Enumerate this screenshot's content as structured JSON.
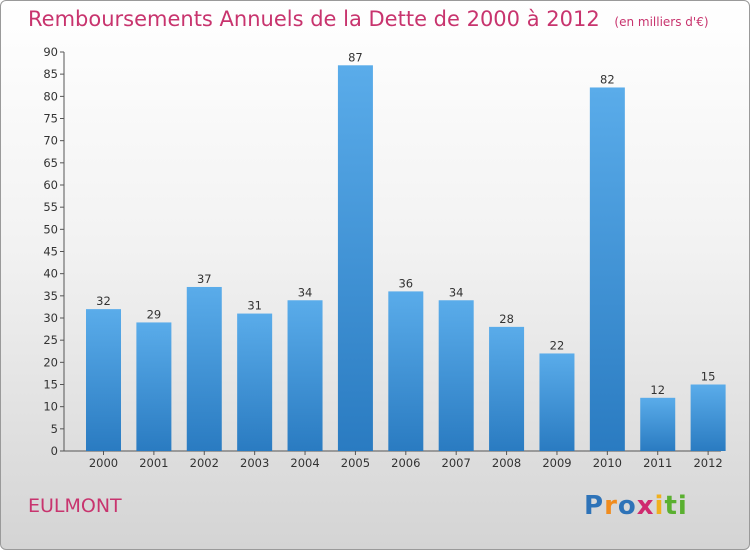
{
  "header": {
    "title": "Remboursements Annuels de la Dette de 2000 à 2012",
    "unit": "(en milliers d'€)"
  },
  "footer": {
    "city": "EULMONT",
    "brand_letters": [
      "P",
      "r",
      "o",
      "x",
      "i",
      "t",
      "i"
    ],
    "brand_colors": [
      "#2e73b8",
      "#f08c1e",
      "#2e73b8",
      "#cf2a6f",
      "#f0b01e",
      "#5ab030",
      "#5ab030"
    ]
  },
  "colors": {
    "bar_top": "#5aacea",
    "bar_bottom": "#2a7bc1",
    "title": "#c8346e"
  },
  "chart_data": {
    "type": "bar",
    "title": "Remboursements Annuels de la Dette de 2000 à 2012",
    "xlabel": "",
    "ylabel": "",
    "categories": [
      "2000",
      "2001",
      "2002",
      "2003",
      "2004",
      "2005",
      "2006",
      "2007",
      "2008",
      "2009",
      "2010",
      "2011",
      "2012"
    ],
    "values": [
      32,
      29,
      37,
      31,
      34,
      87,
      36,
      34,
      28,
      22,
      82,
      12,
      15
    ],
    "ylim": [
      0,
      90
    ],
    "yticks": [
      0,
      5,
      10,
      15,
      20,
      25,
      30,
      35,
      40,
      45,
      50,
      55,
      60,
      65,
      70,
      75,
      80,
      85,
      90
    ],
    "grid": false,
    "legend": "none"
  }
}
